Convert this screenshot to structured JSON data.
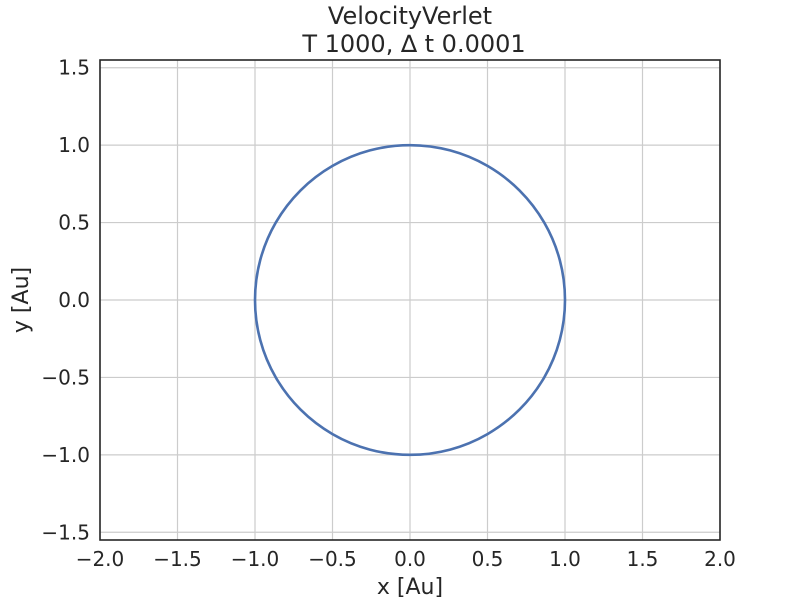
{
  "chart_data": {
    "type": "line",
    "title": "VelocityVerlet",
    "subtitle": "T 1000, ∆ t 0.0001",
    "xlabel": "x [Au]",
    "ylabel": "y [Au]",
    "xlim": [
      -2.0,
      2.0
    ],
    "ylim": [
      -1.55,
      1.55
    ],
    "xticks": [
      -2.0,
      -1.5,
      -1.0,
      -0.5,
      0.0,
      0.5,
      1.0,
      1.5,
      2.0
    ],
    "xtick_labels": [
      "−2.0",
      "−1.5",
      "−1.0",
      "−0.5",
      "0.0",
      "0.5",
      "1.0",
      "1.5",
      "2.0"
    ],
    "yticks": [
      -1.5,
      -1.0,
      -0.5,
      0.0,
      0.5,
      1.0,
      1.5
    ],
    "ytick_labels": [
      "−1.5",
      "−1.0",
      "−0.5",
      "0.0",
      "0.5",
      "1.0",
      "1.5"
    ],
    "grid": true,
    "series": [
      {
        "color": "#4c72b0",
        "x": [
          1.0,
          0.966,
          0.866,
          0.707,
          0.5,
          0.259,
          0.0,
          -0.259,
          -0.5,
          -0.707,
          -0.866,
          -0.966,
          -1.0,
          -0.966,
          -0.866,
          -0.707,
          -0.5,
          -0.259,
          0.0,
          0.259,
          0.5,
          0.707,
          0.866,
          0.966,
          1.0
        ],
        "y": [
          0.0,
          0.259,
          0.5,
          0.707,
          0.866,
          0.966,
          1.0,
          0.966,
          0.866,
          0.707,
          0.5,
          0.259,
          0.0,
          -0.259,
          -0.5,
          -0.707,
          -0.866,
          -0.966,
          -1.0,
          -0.966,
          -0.866,
          -0.707,
          -0.5,
          -0.259,
          0.0
        ]
      }
    ]
  }
}
